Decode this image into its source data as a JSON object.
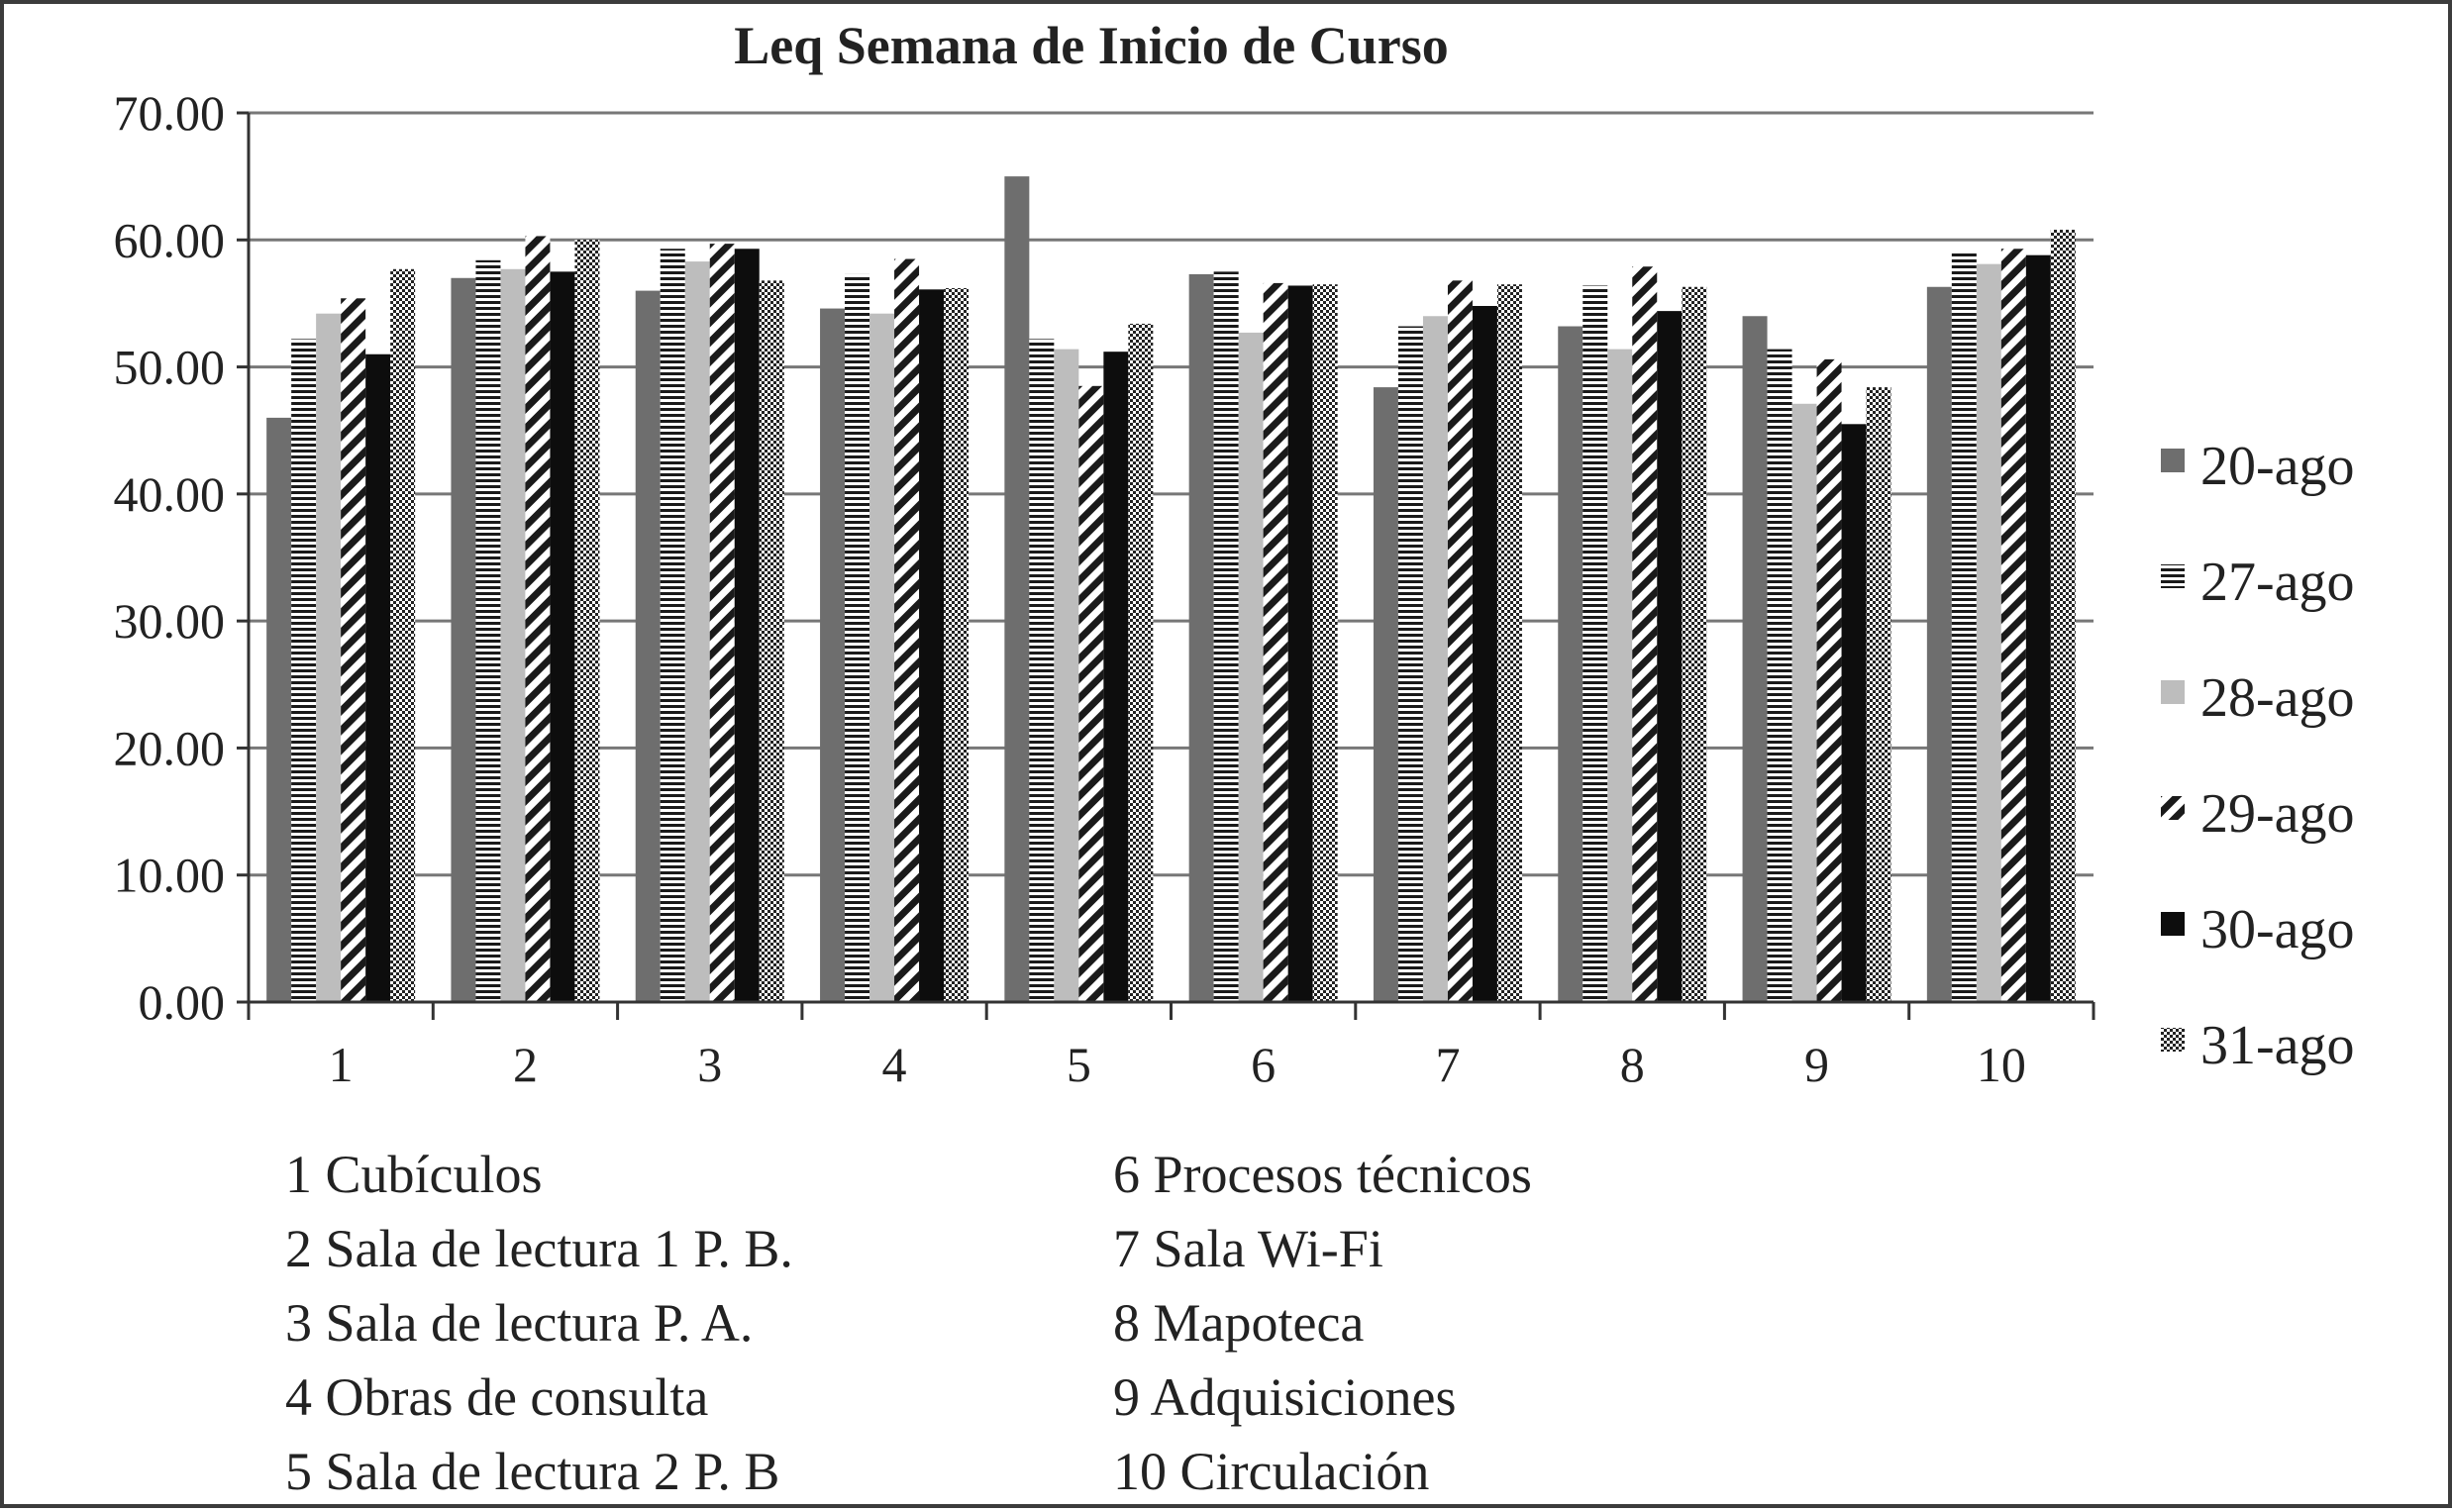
{
  "chart_data": {
    "type": "bar",
    "title": "Leq Semana de Inicio de Curso",
    "xlabel": "",
    "ylabel": "",
    "ylim": [
      0,
      70
    ],
    "yticks": [
      "0.00",
      "10.00",
      "20.00",
      "30.00",
      "40.00",
      "50.00",
      "60.00",
      "70.00"
    ],
    "categories": [
      "1",
      "2",
      "3",
      "4",
      "5",
      "6",
      "7",
      "8",
      "9",
      "10"
    ],
    "grid": true,
    "legend_position": "right",
    "series": [
      {
        "name": "20-ago",
        "color": "#6e6e6e",
        "pattern": "solid-gray",
        "values": [
          46.0,
          57.0,
          56.0,
          54.6,
          65.0,
          57.3,
          48.4,
          53.2,
          54.0,
          56.3
        ]
      },
      {
        "name": "27-ago",
        "color": "#1a1a1a",
        "pattern": "horizontal-lines",
        "values": [
          52.2,
          58.4,
          59.3,
          57.3,
          52.2,
          57.5,
          53.2,
          56.4,
          51.4,
          59.0
        ]
      },
      {
        "name": "28-ago",
        "color": "#bdbdbd",
        "pattern": "solid-light",
        "values": [
          54.2,
          57.7,
          58.3,
          54.2,
          51.4,
          52.7,
          54.0,
          51.4,
          47.1,
          58.1
        ]
      },
      {
        "name": "29-ago",
        "color": "#1a1a1a",
        "pattern": "diagonal-stripes",
        "values": [
          55.4,
          60.3,
          59.7,
          58.5,
          48.5,
          56.6,
          56.8,
          57.9,
          50.6,
          59.3
        ]
      },
      {
        "name": "30-ago",
        "color": "#0d0d0d",
        "pattern": "solid-black",
        "values": [
          51.0,
          57.5,
          59.3,
          56.1,
          51.2,
          56.4,
          54.8,
          54.4,
          45.5,
          58.8
        ]
      },
      {
        "name": "31-ago",
        "color": "#2a2a2a",
        "pattern": "checker",
        "values": [
          57.7,
          60.0,
          56.8,
          56.2,
          53.4,
          56.5,
          56.5,
          56.3,
          48.4,
          60.8
        ]
      }
    ]
  },
  "category_key": {
    "left": [
      "1 Cubículos",
      "2 Sala de lectura 1 P. B.",
      "3 Sala  de lectura P. A.",
      "4 Obras de consulta",
      "5 Sala de lectura 2 P. B"
    ],
    "right": [
      "6 Procesos técnicos",
      "7 Sala Wi-Fi",
      "8 Mapoteca",
      "9 Adquisiciones",
      "10 Circulación"
    ]
  }
}
